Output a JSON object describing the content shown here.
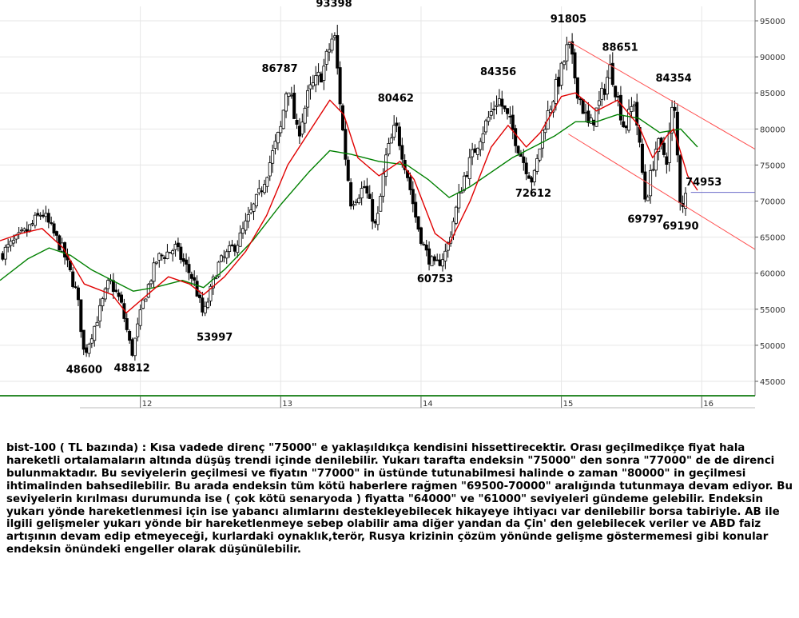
{
  "chart_data": {
    "type": "candlestick",
    "instrument": "bist-100",
    "x_tick_labels": [
      "12",
      "13",
      "14",
      "15",
      "16"
    ],
    "y_tick_labels": [
      45000,
      50000,
      55000,
      60000,
      65000,
      70000,
      75000,
      80000,
      85000,
      90000,
      95000
    ],
    "ylim": [
      43000,
      97000
    ],
    "xlim": [
      2011.0,
      2016.38
    ],
    "last_close": 71200,
    "colors": {
      "up_candle": "#ffffff",
      "down_candle": "#000000",
      "short_moving_average": "#e00000",
      "long_moving_average": "#008000",
      "channel_lines": "#ff5050",
      "last_price_line": "#6c6cc8",
      "baseline": "#2e8b2e",
      "grid": "#e6e6e6"
    },
    "annotations": [
      {
        "text": "48600",
        "x": 2011.6,
        "y": 48600
      },
      {
        "text": "48812",
        "x": 2011.94,
        "y": 48812
      },
      {
        "text": "53997",
        "x": 2012.45,
        "y": 53997
      },
      {
        "text": "86787",
        "x": 2013.05,
        "y": 86787
      },
      {
        "text": "93398",
        "x": 2013.38,
        "y": 93398
      },
      {
        "text": "80462",
        "x": 2013.82,
        "y": 80462
      },
      {
        "text": "60753",
        "x": 2014.1,
        "y": 60753
      },
      {
        "text": "84356",
        "x": 2014.55,
        "y": 84356
      },
      {
        "text": "72612",
        "x": 2014.8,
        "y": 72612
      },
      {
        "text": "91805",
        "x": 2015.05,
        "y": 91805
      },
      {
        "text": "88651",
        "x": 2015.35,
        "y": 88651
      },
      {
        "text": "84354",
        "x": 2015.8,
        "y": 84354
      },
      {
        "text": "74953",
        "x": 2015.9,
        "y": 74953
      },
      {
        "text": "69797",
        "x": 2015.6,
        "y": 69797
      },
      {
        "text": "69190",
        "x": 2015.85,
        "y": 69190
      }
    ],
    "channel": {
      "upper": [
        [
          2015.05,
          92200
        ],
        [
          2016.38,
          77200
        ]
      ],
      "lower": [
        [
          2015.05,
          79300
        ],
        [
          2016.38,
          63300
        ]
      ]
    },
    "path_points": [
      [
        2011.0,
        62500
      ],
      [
        2011.2,
        66000
      ],
      [
        2011.3,
        68500
      ],
      [
        2011.45,
        63000
      ],
      [
        2011.55,
        57000
      ],
      [
        2011.6,
        48600
      ],
      [
        2011.68,
        53000
      ],
      [
        2011.78,
        59000
      ],
      [
        2011.86,
        56000
      ],
      [
        2011.94,
        48812
      ],
      [
        2012.02,
        56000
      ],
      [
        2012.12,
        62000
      ],
      [
        2012.25,
        63500
      ],
      [
        2012.38,
        59000
      ],
      [
        2012.45,
        53997
      ],
      [
        2012.55,
        61000
      ],
      [
        2012.7,
        64500
      ],
      [
        2012.85,
        71000
      ],
      [
        2013.0,
        80000
      ],
      [
        2013.05,
        86787
      ],
      [
        2013.12,
        79000
      ],
      [
        2013.2,
        85000
      ],
      [
        2013.3,
        88000
      ],
      [
        2013.38,
        93398
      ],
      [
        2013.45,
        78000
      ],
      [
        2013.5,
        70000
      ],
      [
        2013.6,
        72000
      ],
      [
        2013.68,
        66000
      ],
      [
        2013.75,
        76000
      ],
      [
        2013.82,
        80462
      ],
      [
        2013.9,
        74000
      ],
      [
        2013.97,
        67000
      ],
      [
        2014.03,
        63000
      ],
      [
        2014.1,
        60753
      ],
      [
        2014.18,
        63000
      ],
      [
        2014.3,
        73000
      ],
      [
        2014.42,
        79000
      ],
      [
        2014.55,
        84356
      ],
      [
        2014.65,
        80000
      ],
      [
        2014.72,
        76000
      ],
      [
        2014.8,
        72612
      ],
      [
        2014.87,
        80000
      ],
      [
        2014.95,
        85000
      ],
      [
        2015.0,
        88000
      ],
      [
        2015.05,
        91805
      ],
      [
        2015.12,
        85000
      ],
      [
        2015.2,
        80000
      ],
      [
        2015.28,
        84000
      ],
      [
        2015.35,
        88651
      ],
      [
        2015.45,
        80000
      ],
      [
        2015.52,
        84000
      ],
      [
        2015.6,
        69797
      ],
      [
        2015.68,
        78000
      ],
      [
        2015.75,
        76000
      ],
      [
        2015.8,
        84354
      ],
      [
        2015.85,
        69190
      ],
      [
        2015.9,
        71200
      ]
    ],
    "moving_average_short": [
      [
        2011.0,
        64500
      ],
      [
        2011.15,
        65500
      ],
      [
        2011.3,
        66200
      ],
      [
        2011.45,
        63500
      ],
      [
        2011.6,
        58500
      ],
      [
        2011.8,
        57000
      ],
      [
        2011.9,
        54500
      ],
      [
        2012.05,
        57000
      ],
      [
        2012.2,
        59500
      ],
      [
        2012.35,
        58500
      ],
      [
        2012.45,
        57000
      ],
      [
        2012.6,
        59500
      ],
      [
        2012.75,
        63000
      ],
      [
        2012.9,
        68000
      ],
      [
        2013.05,
        75000
      ],
      [
        2013.2,
        79500
      ],
      [
        2013.35,
        84000
      ],
      [
        2013.45,
        82000
      ],
      [
        2013.55,
        76000
      ],
      [
        2013.7,
        73500
      ],
      [
        2013.85,
        75500
      ],
      [
        2013.95,
        73000
      ],
      [
        2014.1,
        65500
      ],
      [
        2014.2,
        64000
      ],
      [
        2014.35,
        70000
      ],
      [
        2014.5,
        77500
      ],
      [
        2014.62,
        80500
      ],
      [
        2014.75,
        77500
      ],
      [
        2014.85,
        79500
      ],
      [
        2015.0,
        84500
      ],
      [
        2015.1,
        85000
      ],
      [
        2015.25,
        82500
      ],
      [
        2015.4,
        84000
      ],
      [
        2015.55,
        80500
      ],
      [
        2015.65,
        76000
      ],
      [
        2015.75,
        79000
      ],
      [
        2015.8,
        80000
      ],
      [
        2015.9,
        73500
      ],
      [
        2015.97,
        71500
      ]
    ],
    "moving_average_long": [
      [
        2011.0,
        59000
      ],
      [
        2011.2,
        62000
      ],
      [
        2011.35,
        63500
      ],
      [
        2011.5,
        62500
      ],
      [
        2011.65,
        60500
      ],
      [
        2011.8,
        59000
      ],
      [
        2011.95,
        57500
      ],
      [
        2012.1,
        58000
      ],
      [
        2012.3,
        59000
      ],
      [
        2012.45,
        58000
      ],
      [
        2012.6,
        60500
      ],
      [
        2012.8,
        64500
      ],
      [
        2013.0,
        69500
      ],
      [
        2013.2,
        74000
      ],
      [
        2013.35,
        77000
      ],
      [
        2013.5,
        76500
      ],
      [
        2013.7,
        75500
      ],
      [
        2013.9,
        75000
      ],
      [
        2014.05,
        73000
      ],
      [
        2014.2,
        70500
      ],
      [
        2014.35,
        72000
      ],
      [
        2014.5,
        74000
      ],
      [
        2014.65,
        76000
      ],
      [
        2014.8,
        77500
      ],
      [
        2014.95,
        79000
      ],
      [
        2015.1,
        81000
      ],
      [
        2015.25,
        81000
      ],
      [
        2015.4,
        82000
      ],
      [
        2015.55,
        81500
      ],
      [
        2015.7,
        79500
      ],
      [
        2015.85,
        80000
      ],
      [
        2015.97,
        77500
      ]
    ]
  },
  "commentary": "bist-100 ( TL bazında) : Kısa vadede direnç \"75000\" e yaklaşıldıkça kendisini hissettirecektir. Orası geçilmedikçe fiyat hala hareketli ortalamaların altında düşüş trendi içinde denilebilir. Yukarı tarafta endeksin \"75000\" den sonra \"77000\" de de direnci bulunmaktadır. Bu seviyelerin geçilmesi ve fiyatın \"77000\" in üstünde tutunabilmesi halinde o zaman \"80000\" in geçilmesi ihtimalinden bahsedilebilir. Bu arada endeksin tüm kötü haberlere rağmen \"69500-70000\" aralığında tutunmaya devam ediyor. Bu seviyelerin kırılması durumunda ise ( çok kötü senaryoda ) fiyatta \"64000\" ve \"61000\" seviyeleri gündeme gelebilir. Endeksin yukarı yönde hareketlenmesi için ise yabancı alımlarını destekleyebilecek hikayeye ihtiyacı var denilebilir borsa tabiriyle. AB ile ilgili gelişmeler yukarı yönde bir hareketlenmeye sebep olabilir ama diğer yandan da Çin' den gelebilecek veriler ve ABD faiz artışının devam edip etmeyeceği, kurlardaki oynaklık,terör, Rusya krizinin çözüm yönünde gelişme göstermemesi gibi konular endeksin önündeki engeller olarak düşünülebilir."
}
